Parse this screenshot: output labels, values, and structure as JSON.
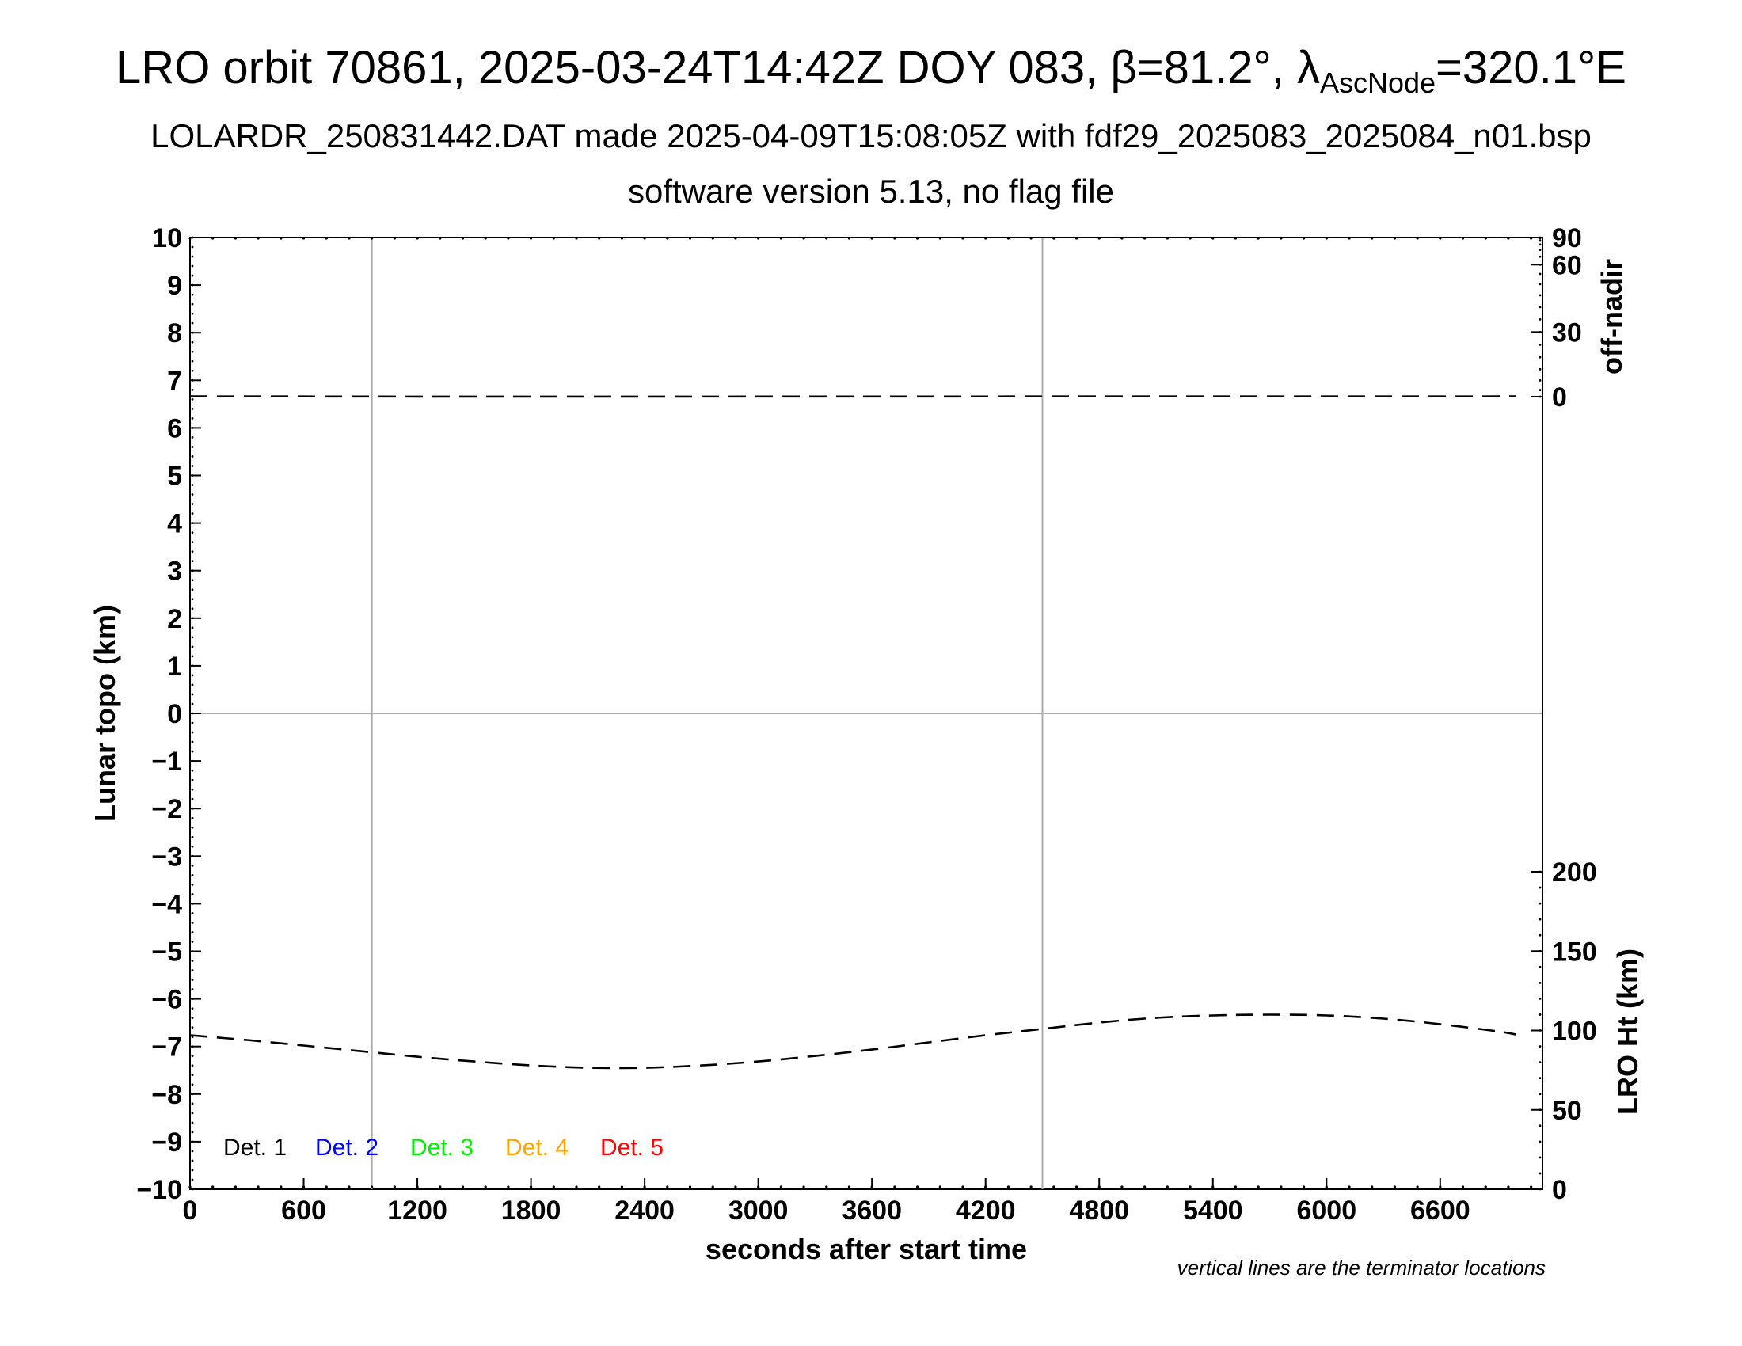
{
  "title": {
    "main_prefix": "LRO orbit 70861, 2025-03-24T14:42Z DOY 083, β=81.2°, λ",
    "main_sub": "AscNode",
    "main_suffix": "=320.1°E",
    "line2": "LOLARDR_250831442.DAT made 2025-04-09T15:08:05Z with fdf29_2025083_2025084_n01.bsp",
    "line3": "software version 5.13, no flag file"
  },
  "chart_data": {
    "type": "line",
    "xlabel": "seconds after start time",
    "ylabel": "Lunar topo (km)",
    "y2label_top": "off-nadir",
    "y2label_bottom": "LRO Ht (km)",
    "xlim": [
      0,
      7140
    ],
    "ylim": [
      -10,
      10
    ],
    "x_ticks": [
      0,
      600,
      1200,
      1800,
      2400,
      3000,
      3600,
      4200,
      4800,
      5400,
      6000,
      6600
    ],
    "y_ticks": [
      -10,
      -9,
      -8,
      -7,
      -6,
      -5,
      -4,
      -3,
      -2,
      -1,
      0,
      1,
      2,
      3,
      4,
      5,
      6,
      7,
      8,
      9,
      10
    ],
    "y_tick_labels": [
      "−10",
      "−9",
      "−8",
      "−7",
      "−6",
      "−5",
      "−4",
      "−3",
      "−2",
      "−1",
      "0",
      "1",
      "2",
      "3",
      "4",
      "5",
      "6",
      "7",
      "8",
      "9",
      "10"
    ],
    "off_nadir_axis": {
      "ticks": [
        0,
        30,
        60,
        90
      ],
      "range": [
        0,
        90
      ]
    },
    "height_axis": {
      "ticks": [
        0,
        50,
        100,
        150,
        200
      ],
      "range": [
        0,
        200
      ]
    },
    "terminator_lines_x": [
      960,
      4500
    ],
    "zero_line_y": 0,
    "grid": false,
    "legend": {
      "placement": "bottom-left",
      "entries": [
        {
          "label": "Det. 1",
          "color": "#000000"
        },
        {
          "label": "Det. 2",
          "color": "#0000ff"
        },
        {
          "label": "Det. 3",
          "color": "#00ee00"
        },
        {
          "label": "Det. 4",
          "color": "#ffa500"
        },
        {
          "label": "Det. 5",
          "color": "#ff0000"
        }
      ]
    },
    "note": "vertical lines are the terminator locations",
    "series": [
      {
        "axis": "off-nadir",
        "style": "dashed",
        "x": [
          0,
          1200,
          2400,
          3600,
          4800,
          6000,
          7000
        ],
        "y": [
          0.5,
          0.2,
          0.2,
          0.3,
          0.4,
          0.4,
          0.5
        ]
      },
      {
        "axis": "LRO Ht (km)",
        "style": "dashed",
        "x": [
          0,
          300,
          600,
          900,
          1200,
          1500,
          1800,
          2100,
          2400,
          2700,
          3000,
          3300,
          3600,
          3900,
          4200,
          4500,
          4800,
          5100,
          5400,
          5700,
          6000,
          6300,
          6600,
          6900,
          7000
        ],
        "y": [
          97,
          94,
          90.5,
          87,
          83.5,
          80.5,
          78,
          76.5,
          76.5,
          78,
          80.5,
          84,
          88,
          92.5,
          97,
          101,
          105,
          108,
          109.5,
          110,
          109.5,
          107.5,
          104,
          99.5,
          97.5
        ]
      }
    ]
  }
}
